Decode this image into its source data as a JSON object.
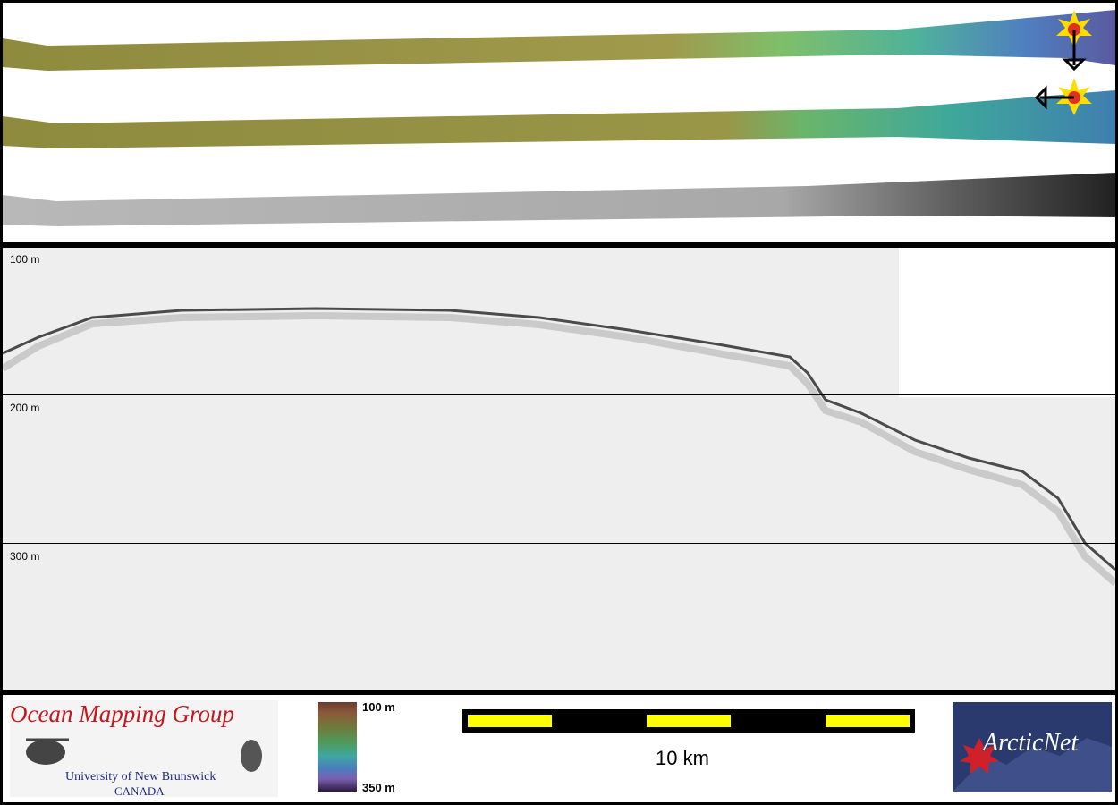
{
  "profile": {
    "depth_labels": [
      "100 m",
      "200 m",
      "300 m"
    ]
  },
  "footer": {
    "omg_title": "Ocean Mapping Group",
    "omg_university": "University of New Brunswick",
    "omg_country": "CANADA",
    "colorbar_top": "100 m",
    "colorbar_bottom": "350 m",
    "scale_label": "10 km",
    "arcticnet_label": "ArcticNet"
  }
}
